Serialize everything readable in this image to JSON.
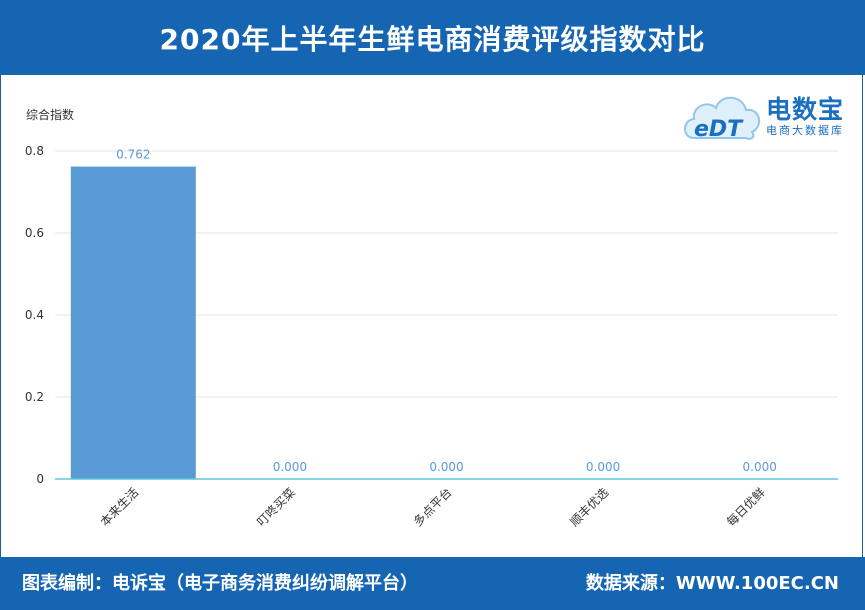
{
  "header": {
    "title": "2020年上半年生鲜电商消费评级指数对比"
  },
  "logo": {
    "brand": "电数宝",
    "sub": "电商大数据库",
    "mark": "eDT",
    "mark_icon": "cloud-icon"
  },
  "footer": {
    "left": "图表编制：电诉宝（电子商务消费纠纷调解平台）",
    "right": "数据来源：WWW.100EC.CN"
  },
  "chart_data": {
    "type": "bar",
    "ylabel": "综合指数",
    "xlabel": "",
    "categories": [
      "本来生活",
      "叮咚买菜",
      "多点平台",
      "顺丰优选",
      "每日优鲜"
    ],
    "values": [
      0.762,
      0.0,
      0.0,
      0.0,
      0.0
    ],
    "value_labels": [
      "0.762",
      "0.000",
      "0.000",
      "0.000",
      "0.000"
    ],
    "ylim": [
      0,
      0.8
    ],
    "yticks": [
      0,
      0.2,
      0.4,
      0.6,
      0.8
    ],
    "ytick_labels": [
      "0",
      "0.2",
      "0.4",
      "0.6",
      "0.8"
    ],
    "grid": true,
    "legend": "none",
    "bar_color": "#5b9bd5",
    "axis_color": "#5bc8d8",
    "label_color": "#5b9bd5"
  }
}
